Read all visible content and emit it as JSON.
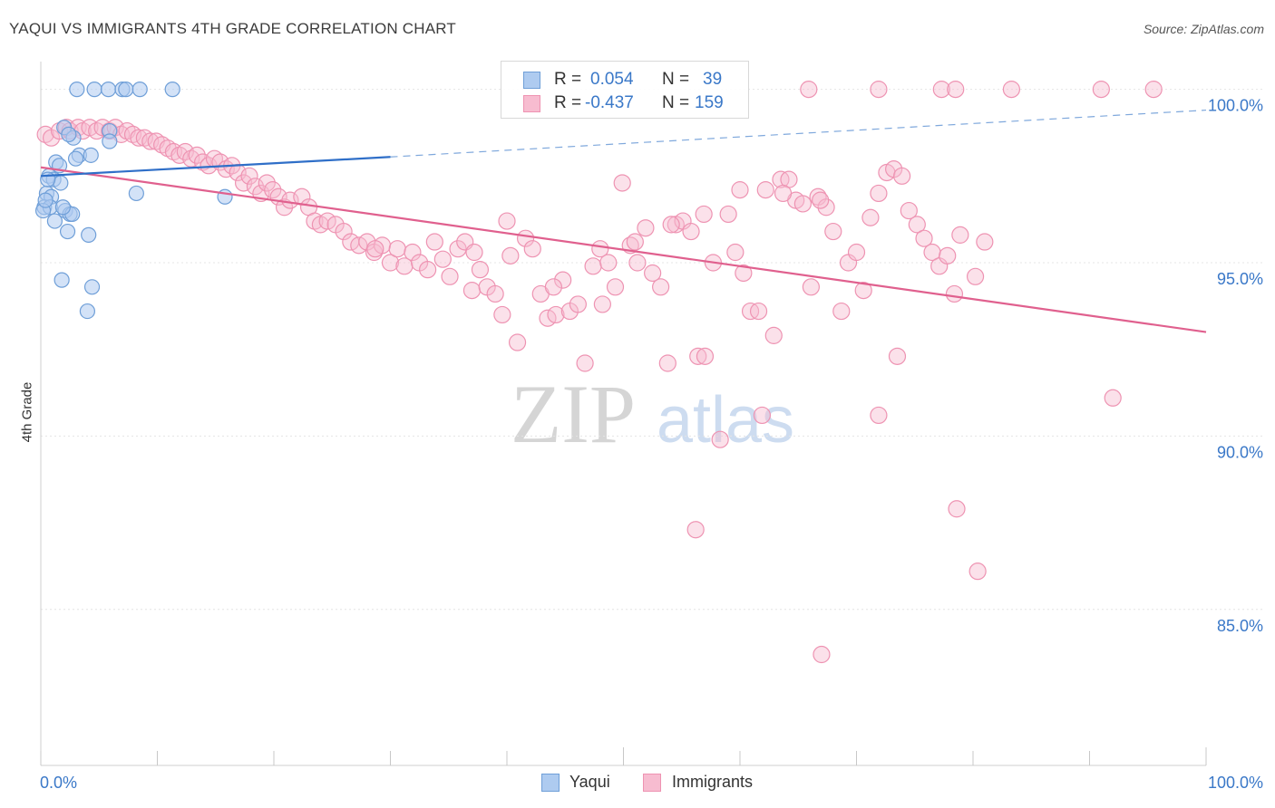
{
  "title": "YAQUI VS IMMIGRANTS 4TH GRADE CORRELATION CHART",
  "source": "Source: ZipAtlas.com",
  "colors": {
    "yaqui_fill": "#aecbf0",
    "yaqui_stroke": "#6f9fd8",
    "yaqui_line": "#2f6fc8",
    "imm_fill": "#f7bcd0",
    "imm_stroke": "#ee93b2",
    "imm_line": "#e0608e",
    "tick_label": "#3a78c8",
    "grid": "#e4e4e4"
  },
  "legend": {
    "rows": [
      {
        "r_label": "R =",
        "r_value": "0.054",
        "n_label": "N =",
        "n_value": "39"
      },
      {
        "r_label": "R =",
        "r_value": "-0.437",
        "n_label": "N =",
        "n_value": "159"
      }
    ]
  },
  "bottom_legend": {
    "yaqui": "Yaqui",
    "immigrants": "Immigrants"
  },
  "watermark": {
    "zip": "ZIP",
    "atlas": "atlas"
  },
  "chart_data": {
    "type": "scatter",
    "title": "YAQUI VS IMMIGRANTS 4TH GRADE CORRELATION CHART",
    "xlabel": "",
    "ylabel": "4th Grade",
    "xlim": [
      0,
      100
    ],
    "ylim": [
      80.5,
      100.8
    ],
    "x_tick_labels": [
      {
        "value": 0,
        "label": "0.0%"
      },
      {
        "value": 100,
        "label": "100.0%"
      }
    ],
    "y_ticks": [
      {
        "value": 100,
        "label": "100.0%"
      },
      {
        "value": 95,
        "label": "95.0%"
      },
      {
        "value": 90,
        "label": "90.0%"
      },
      {
        "value": 85,
        "label": "85.0%"
      }
    ],
    "grid": true,
    "legend_position": "top-center",
    "series": [
      {
        "name": "Yaqui",
        "r": 0.054,
        "n": 39,
        "trend": {
          "x0": 0,
          "y0": 97.5,
          "x1": 30,
          "y1": 98.05,
          "dashed_to_x": 100,
          "dashed_to_y": 99.4
        },
        "points": [
          [
            3.1,
            100
          ],
          [
            4.6,
            100
          ],
          [
            5.8,
            100
          ],
          [
            7.0,
            100
          ],
          [
            7.3,
            100
          ],
          [
            8.5,
            100
          ],
          [
            11.3,
            100
          ],
          [
            2.0,
            98.9
          ],
          [
            5.9,
            98.8
          ],
          [
            2.8,
            98.6
          ],
          [
            5.9,
            98.5
          ],
          [
            3.3,
            98.1
          ],
          [
            3.0,
            98.0
          ],
          [
            1.3,
            97.9
          ],
          [
            1.6,
            97.8
          ],
          [
            0.7,
            97.5
          ],
          [
            1.1,
            97.4
          ],
          [
            1.7,
            97.3
          ],
          [
            0.5,
            97.0
          ],
          [
            0.9,
            96.9
          ],
          [
            8.2,
            97.0
          ],
          [
            15.8,
            96.9
          ],
          [
            0.3,
            96.6
          ],
          [
            0.8,
            96.6
          ],
          [
            2.1,
            96.5
          ],
          [
            2.5,
            96.4
          ],
          [
            2.7,
            96.4
          ],
          [
            1.2,
            96.2
          ],
          [
            0.2,
            96.5
          ],
          [
            2.3,
            95.9
          ],
          [
            4.1,
            95.8
          ],
          [
            1.8,
            94.5
          ],
          [
            4.4,
            94.3
          ],
          [
            4.0,
            93.6
          ],
          [
            0.4,
            96.8
          ],
          [
            1.9,
            96.6
          ],
          [
            0.6,
            97.4
          ],
          [
            2.4,
            98.7
          ],
          [
            4.3,
            98.1
          ]
        ]
      },
      {
        "name": "Immigrants",
        "r": -0.437,
        "n": 159,
        "trend": {
          "x0": 0,
          "y0": 97.75,
          "x1": 100,
          "y1": 93.0
        },
        "points": [
          [
            65.9,
            100
          ],
          [
            71.9,
            100
          ],
          [
            77.3,
            100
          ],
          [
            78.5,
            100
          ],
          [
            83.3,
            100
          ],
          [
            91.0,
            100
          ],
          [
            95.5,
            100
          ],
          [
            0.4,
            98.7
          ],
          [
            0.9,
            98.6
          ],
          [
            1.6,
            98.8
          ],
          [
            2.2,
            98.9
          ],
          [
            2.5,
            98.8
          ],
          [
            3.2,
            98.9
          ],
          [
            3.6,
            98.8
          ],
          [
            4.2,
            98.9
          ],
          [
            4.8,
            98.8
          ],
          [
            5.3,
            98.9
          ],
          [
            5.9,
            98.8
          ],
          [
            6.4,
            98.9
          ],
          [
            6.9,
            98.7
          ],
          [
            7.4,
            98.8
          ],
          [
            7.9,
            98.7
          ],
          [
            8.4,
            98.6
          ],
          [
            8.9,
            98.6
          ],
          [
            9.4,
            98.5
          ],
          [
            9.9,
            98.5
          ],
          [
            10.4,
            98.4
          ],
          [
            10.9,
            98.3
          ],
          [
            11.4,
            98.2
          ],
          [
            11.9,
            98.1
          ],
          [
            12.4,
            98.2
          ],
          [
            12.9,
            98.0
          ],
          [
            13.4,
            98.1
          ],
          [
            13.9,
            97.9
          ],
          [
            14.4,
            97.8
          ],
          [
            14.9,
            98.0
          ],
          [
            15.4,
            97.9
          ],
          [
            15.9,
            97.7
          ],
          [
            16.4,
            97.8
          ],
          [
            16.9,
            97.6
          ],
          [
            17.4,
            97.3
          ],
          [
            17.9,
            97.5
          ],
          [
            18.4,
            97.2
          ],
          [
            18.9,
            97.0
          ],
          [
            19.4,
            97.3
          ],
          [
            19.9,
            97.1
          ],
          [
            20.4,
            96.9
          ],
          [
            20.9,
            96.6
          ],
          [
            21.4,
            96.8
          ],
          [
            22.4,
            96.9
          ],
          [
            23.0,
            96.6
          ],
          [
            23.5,
            96.2
          ],
          [
            24.0,
            96.1
          ],
          [
            24.6,
            96.2
          ],
          [
            25.3,
            96.1
          ],
          [
            26.0,
            95.9
          ],
          [
            26.6,
            95.6
          ],
          [
            27.3,
            95.5
          ],
          [
            28.0,
            95.6
          ],
          [
            28.6,
            95.3
          ],
          [
            29.3,
            95.5
          ],
          [
            30.0,
            95.0
          ],
          [
            30.6,
            95.4
          ],
          [
            31.2,
            94.9
          ],
          [
            31.9,
            95.3
          ],
          [
            32.5,
            95.0
          ],
          [
            33.2,
            94.8
          ],
          [
            33.8,
            95.6
          ],
          [
            34.5,
            95.1
          ],
          [
            35.1,
            94.6
          ],
          [
            35.8,
            95.4
          ],
          [
            36.4,
            95.6
          ],
          [
            37.0,
            94.2
          ],
          [
            37.7,
            94.8
          ],
          [
            38.3,
            94.3
          ],
          [
            39.0,
            94.1
          ],
          [
            39.6,
            93.5
          ],
          [
            40.3,
            95.2
          ],
          [
            40.9,
            92.7
          ],
          [
            41.6,
            95.7
          ],
          [
            42.2,
            95.4
          ],
          [
            42.9,
            94.1
          ],
          [
            43.5,
            93.4
          ],
          [
            44.2,
            93.5
          ],
          [
            44.8,
            94.5
          ],
          [
            45.4,
            93.6
          ],
          [
            46.1,
            93.8
          ],
          [
            46.7,
            92.1
          ],
          [
            47.4,
            94.9
          ],
          [
            48.0,
            95.4
          ],
          [
            48.7,
            95.0
          ],
          [
            49.3,
            94.3
          ],
          [
            49.9,
            97.3
          ],
          [
            50.6,
            95.5
          ],
          [
            51.2,
            95.0
          ],
          [
            51.9,
            96.0
          ],
          [
            52.5,
            94.7
          ],
          [
            53.2,
            94.3
          ],
          [
            53.8,
            92.1
          ],
          [
            54.5,
            96.1
          ],
          [
            55.1,
            96.2
          ],
          [
            55.8,
            95.9
          ],
          [
            56.4,
            92.3
          ],
          [
            57.0,
            92.3
          ],
          [
            57.7,
            95.0
          ],
          [
            58.3,
            89.9
          ],
          [
            59.0,
            96.4
          ],
          [
            59.6,
            95.3
          ],
          [
            60.3,
            94.7
          ],
          [
            60.9,
            93.6
          ],
          [
            61.6,
            93.6
          ],
          [
            62.2,
            97.1
          ],
          [
            62.9,
            92.9
          ],
          [
            63.5,
            97.4
          ],
          [
            64.2,
            97.4
          ],
          [
            64.8,
            96.8
          ],
          [
            65.4,
            96.7
          ],
          [
            66.1,
            94.3
          ],
          [
            66.7,
            96.9
          ],
          [
            67.4,
            96.6
          ],
          [
            68.0,
            95.9
          ],
          [
            68.7,
            93.6
          ],
          [
            69.3,
            95.0
          ],
          [
            70.0,
            95.3
          ],
          [
            71.2,
            96.3
          ],
          [
            71.9,
            97.0
          ],
          [
            72.6,
            97.6
          ],
          [
            73.2,
            97.7
          ],
          [
            73.9,
            97.5
          ],
          [
            74.5,
            96.5
          ],
          [
            75.2,
            96.1
          ],
          [
            75.8,
            95.7
          ],
          [
            76.5,
            95.3
          ],
          [
            77.1,
            94.9
          ],
          [
            77.8,
            95.2
          ],
          [
            78.4,
            94.1
          ],
          [
            78.9,
            95.8
          ],
          [
            80.2,
            94.6
          ],
          [
            81.0,
            95.6
          ],
          [
            40.0,
            96.2
          ],
          [
            44.0,
            94.3
          ],
          [
            48.2,
            93.8
          ],
          [
            51.0,
            95.6
          ],
          [
            54.1,
            96.1
          ],
          [
            56.9,
            96.4
          ],
          [
            60.0,
            97.1
          ],
          [
            63.7,
            97.0
          ],
          [
            66.9,
            96.8
          ],
          [
            70.6,
            94.2
          ],
          [
            73.5,
            92.3
          ],
          [
            71.9,
            90.6
          ],
          [
            92.0,
            91.1
          ],
          [
            61.9,
            90.6
          ],
          [
            56.2,
            87.3
          ],
          [
            78.6,
            87.9
          ],
          [
            80.4,
            86.1
          ],
          [
            67.0,
            83.7
          ],
          [
            37.2,
            95.3
          ],
          [
            28.7,
            95.4
          ]
        ]
      }
    ]
  }
}
